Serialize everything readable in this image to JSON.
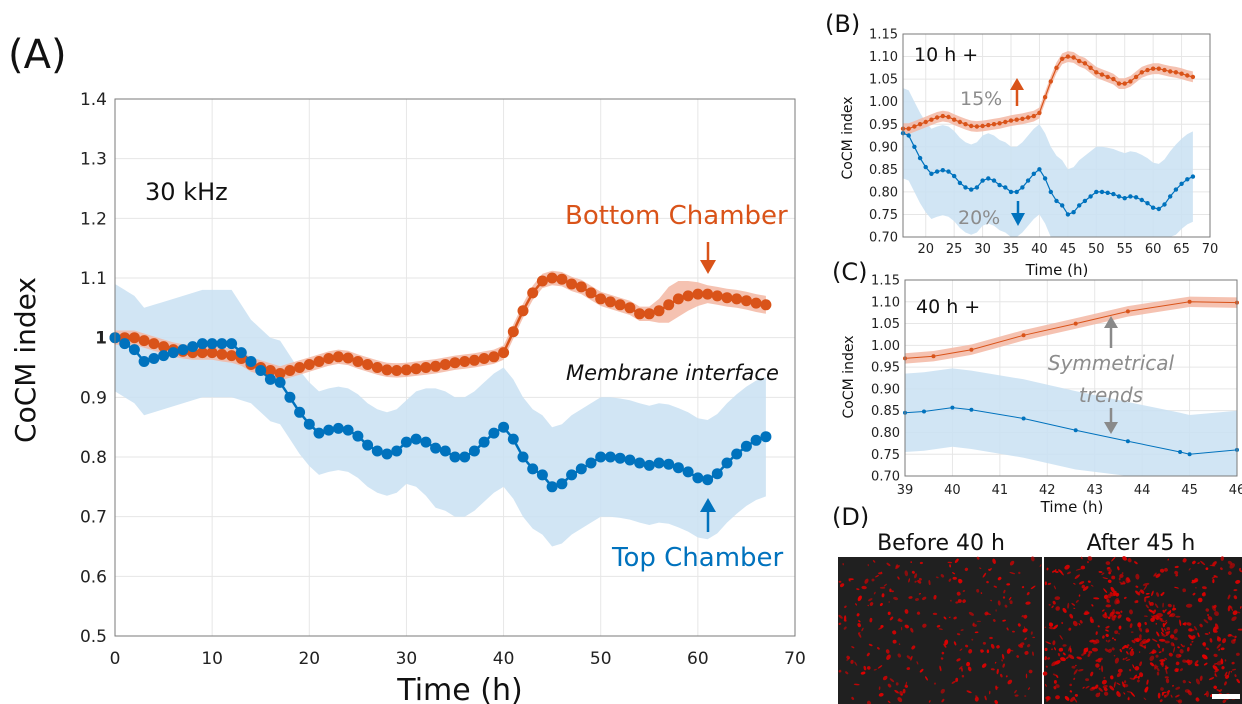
{
  "colors": {
    "orange": "#d95319",
    "blue": "#0072bd",
    "orange_band": "#f3b7a3",
    "blue_band": "#c9e0f2",
    "gray_label": "#8c8c8c",
    "annotation_arrow_gray": "#8a8a8a",
    "micro_bg": "#202020",
    "micro_spot": "#e00000",
    "scale_bar": "#ffffff"
  },
  "panel_a": {
    "label": "(A)",
    "frequency": "30 kHz",
    "bottom_label": "Bottom Chamber",
    "top_label": "Top Chamber",
    "membrane_label": "Membrane interface"
  },
  "panel_b": {
    "label": "(B)",
    "window": "10 h +",
    "pct_up": "15%",
    "pct_down": "20%"
  },
  "panel_c": {
    "label": "(C)",
    "window": "40 h +",
    "annotation_line1": "Symmetrical",
    "annotation_line2": "trends"
  },
  "panel_d": {
    "label": "(D)",
    "before_title": "Before 40 h",
    "after_title": "After 45 h"
  },
  "chart_data": [
    {
      "id": "A",
      "type": "line",
      "xlabel": "Time (h)",
      "ylabel": "CoCM index",
      "xlim": [
        0,
        70
      ],
      "ylim": [
        0.5,
        1.4
      ],
      "xticks": [
        "0",
        "10",
        "20",
        "30",
        "40",
        "50",
        "60",
        "70"
      ],
      "yticks": [
        "0.5",
        "0.6",
        "0.7",
        "0.8",
        "0.9",
        "1",
        "1.1",
        "1.2",
        "1.3",
        "1.4"
      ],
      "grid": true,
      "series": [
        {
          "name": "Bottom Chamber",
          "color": "#d95319",
          "x": [
            0,
            1,
            2,
            3,
            4,
            5,
            6,
            7,
            8,
            9,
            10,
            11,
            12,
            13,
            14,
            15,
            16,
            17,
            18,
            19,
            20,
            21,
            22,
            23,
            24,
            25,
            26,
            27,
            28,
            29,
            30,
            31,
            32,
            33,
            34,
            35,
            36,
            37,
            38,
            39,
            40,
            41,
            42,
            43,
            44,
            45,
            46,
            47,
            48,
            49,
            50,
            51,
            52,
            53,
            54,
            55,
            56,
            57,
            58,
            59,
            60,
            61,
            62,
            63,
            64,
            65,
            66,
            67
          ],
          "y": [
            1.0,
            1.0,
            1.0,
            0.995,
            0.99,
            0.985,
            0.98,
            0.977,
            0.975,
            0.975,
            0.975,
            0.972,
            0.97,
            0.965,
            0.955,
            0.95,
            0.945,
            0.94,
            0.945,
            0.95,
            0.955,
            0.96,
            0.965,
            0.968,
            0.966,
            0.96,
            0.955,
            0.95,
            0.946,
            0.945,
            0.946,
            0.948,
            0.95,
            0.952,
            0.955,
            0.958,
            0.96,
            0.962,
            0.965,
            0.968,
            0.975,
            1.01,
            1.045,
            1.075,
            1.095,
            1.1,
            1.098,
            1.09,
            1.085,
            1.075,
            1.065,
            1.06,
            1.055,
            1.05,
            1.04,
            1.04,
            1.045,
            1.055,
            1.065,
            1.07,
            1.073,
            1.073,
            1.07,
            1.067,
            1.065,
            1.062,
            1.058,
            1.055
          ],
          "band": [
            0.012,
            0.012,
            0.012,
            0.012,
            0.012,
            0.012,
            0.012,
            0.012,
            0.012,
            0.012,
            0.012,
            0.012,
            0.012,
            0.012,
            0.012,
            0.012,
            0.012,
            0.012,
            0.012,
            0.012,
            0.012,
            0.012,
            0.012,
            0.012,
            0.012,
            0.012,
            0.012,
            0.012,
            0.012,
            0.012,
            0.012,
            0.012,
            0.012,
            0.012,
            0.012,
            0.012,
            0.012,
            0.012,
            0.012,
            0.012,
            0.012,
            0.012,
            0.012,
            0.012,
            0.012,
            0.012,
            0.012,
            0.012,
            0.012,
            0.012,
            0.012,
            0.012,
            0.012,
            0.012,
            0.012,
            0.012,
            0.02,
            0.03,
            0.03,
            0.025,
            0.02,
            0.015,
            0.015,
            0.015,
            0.015,
            0.015,
            0.015,
            0.015
          ]
        },
        {
          "name": "Top Chamber",
          "color": "#0072bd",
          "x": [
            0,
            1,
            2,
            3,
            4,
            5,
            6,
            7,
            8,
            9,
            10,
            11,
            12,
            13,
            14,
            15,
            16,
            17,
            18,
            19,
            20,
            21,
            22,
            23,
            24,
            25,
            26,
            27,
            28,
            29,
            30,
            31,
            32,
            33,
            34,
            35,
            36,
            37,
            38,
            39,
            40,
            41,
            42,
            43,
            44,
            45,
            46,
            47,
            48,
            49,
            50,
            51,
            52,
            53,
            54,
            55,
            56,
            57,
            58,
            59,
            60,
            61,
            62,
            63,
            64,
            65,
            66,
            67
          ],
          "y": [
            1.0,
            0.99,
            0.98,
            0.96,
            0.965,
            0.97,
            0.975,
            0.98,
            0.985,
            0.99,
            0.99,
            0.99,
            0.99,
            0.975,
            0.96,
            0.945,
            0.93,
            0.925,
            0.9,
            0.875,
            0.855,
            0.84,
            0.845,
            0.848,
            0.845,
            0.835,
            0.82,
            0.81,
            0.805,
            0.81,
            0.825,
            0.83,
            0.825,
            0.815,
            0.81,
            0.8,
            0.8,
            0.81,
            0.825,
            0.84,
            0.85,
            0.83,
            0.8,
            0.78,
            0.77,
            0.75,
            0.755,
            0.77,
            0.78,
            0.79,
            0.8,
            0.8,
            0.798,
            0.795,
            0.79,
            0.786,
            0.79,
            0.788,
            0.782,
            0.775,
            0.765,
            0.762,
            0.772,
            0.79,
            0.805,
            0.818,
            0.828,
            0.834
          ],
          "band": [
            0.09,
            0.09,
            0.09,
            0.09,
            0.09,
            0.09,
            0.09,
            0.09,
            0.09,
            0.09,
            0.09,
            0.09,
            0.09,
            0.08,
            0.07,
            0.07,
            0.07,
            0.07,
            0.07,
            0.07,
            0.07,
            0.07,
            0.07,
            0.07,
            0.07,
            0.07,
            0.07,
            0.07,
            0.07,
            0.07,
            0.07,
            0.08,
            0.09,
            0.1,
            0.1,
            0.1,
            0.1,
            0.1,
            0.1,
            0.1,
            0.1,
            0.1,
            0.1,
            0.1,
            0.1,
            0.1,
            0.1,
            0.1,
            0.1,
            0.1,
            0.1,
            0.1,
            0.1,
            0.1,
            0.1,
            0.1,
            0.1,
            0.1,
            0.1,
            0.1,
            0.1,
            0.1,
            0.1,
            0.1,
            0.1,
            0.1,
            0.1,
            0.1
          ]
        }
      ]
    },
    {
      "id": "B",
      "type": "line",
      "xlabel": "Time (h)",
      "ylabel": "CoCM index",
      "xlim": [
        16,
        70
      ],
      "ylim": [
        0.7,
        1.15
      ],
      "xticks": [
        "20",
        "25",
        "30",
        "35",
        "40",
        "45",
        "50",
        "55",
        "60",
        "65",
        "70"
      ],
      "yticks": [
        "0.70",
        "0.75",
        "0.80",
        "0.85",
        "0.90",
        "0.95",
        "1.00",
        "1.05",
        "1.10",
        "1.15"
      ],
      "grid": true,
      "series": [
        {
          "color": "#d95319",
          "x": [
            16,
            17,
            18,
            19,
            20,
            21,
            22,
            23,
            24,
            25,
            26,
            27,
            28,
            29,
            30,
            31,
            32,
            33,
            34,
            35,
            36,
            37,
            38,
            39,
            40,
            41,
            42,
            43,
            44,
            45,
            46,
            47,
            48,
            49,
            50,
            51,
            52,
            53,
            54,
            55,
            56,
            57,
            58,
            59,
            60,
            61,
            62,
            63,
            64,
            65,
            66,
            67
          ],
          "y": [
            0.94,
            0.94,
            0.945,
            0.95,
            0.955,
            0.96,
            0.965,
            0.968,
            0.966,
            0.96,
            0.955,
            0.95,
            0.946,
            0.945,
            0.946,
            0.948,
            0.95,
            0.952,
            0.955,
            0.958,
            0.96,
            0.962,
            0.965,
            0.968,
            0.975,
            1.01,
            1.045,
            1.075,
            1.095,
            1.1,
            1.098,
            1.09,
            1.085,
            1.075,
            1.065,
            1.06,
            1.055,
            1.05,
            1.04,
            1.04,
            1.045,
            1.055,
            1.065,
            1.07,
            1.073,
            1.073,
            1.07,
            1.067,
            1.065,
            1.062,
            1.058,
            1.055
          ],
          "band": 0.012
        },
        {
          "color": "#0072bd",
          "x": [
            16,
            17,
            18,
            19,
            20,
            21,
            22,
            23,
            24,
            25,
            26,
            27,
            28,
            29,
            30,
            31,
            32,
            33,
            34,
            35,
            36,
            37,
            38,
            39,
            40,
            41,
            42,
            43,
            44,
            45,
            46,
            47,
            48,
            49,
            50,
            51,
            52,
            53,
            54,
            55,
            56,
            57,
            58,
            59,
            60,
            61,
            62,
            63,
            64,
            65,
            66,
            67
          ],
          "y": [
            0.93,
            0.925,
            0.9,
            0.875,
            0.855,
            0.84,
            0.845,
            0.848,
            0.845,
            0.835,
            0.82,
            0.81,
            0.805,
            0.81,
            0.825,
            0.83,
            0.825,
            0.815,
            0.81,
            0.8,
            0.8,
            0.81,
            0.825,
            0.84,
            0.85,
            0.83,
            0.8,
            0.78,
            0.77,
            0.75,
            0.755,
            0.77,
            0.78,
            0.79,
            0.8,
            0.8,
            0.798,
            0.795,
            0.79,
            0.786,
            0.79,
            0.788,
            0.782,
            0.775,
            0.765,
            0.762,
            0.772,
            0.79,
            0.805,
            0.818,
            0.828,
            0.834
          ],
          "band": 0.1
        }
      ]
    },
    {
      "id": "C",
      "type": "line",
      "xlabel": "Time (h)",
      "ylabel": "CoCM index",
      "xlim": [
        39,
        46
      ],
      "ylim": [
        0.7,
        1.15
      ],
      "xticks": [
        "39",
        "40",
        "41",
        "42",
        "43",
        "44",
        "45",
        "46"
      ],
      "yticks": [
        "0.70",
        "0.75",
        "0.80",
        "0.85",
        "0.90",
        "0.95",
        "1.00",
        "1.05",
        "1.10",
        "1.15"
      ],
      "grid": true,
      "series": [
        {
          "color": "#d95319",
          "x": [
            39,
            39.6,
            40.4,
            41.5,
            42.6,
            43.7,
            45,
            46
          ],
          "y": [
            0.97,
            0.975,
            0.99,
            1.023,
            1.05,
            1.078,
            1.1,
            1.098
          ],
          "band": 0.012
        },
        {
          "color": "#0072bd",
          "x": [
            39,
            39.4,
            40.0,
            40.4,
            41.5,
            42.6,
            43.7,
            44.8,
            45,
            46
          ],
          "y": [
            0.845,
            0.848,
            0.857,
            0.852,
            0.832,
            0.805,
            0.78,
            0.755,
            0.75,
            0.76
          ],
          "band": 0.09
        }
      ]
    }
  ]
}
